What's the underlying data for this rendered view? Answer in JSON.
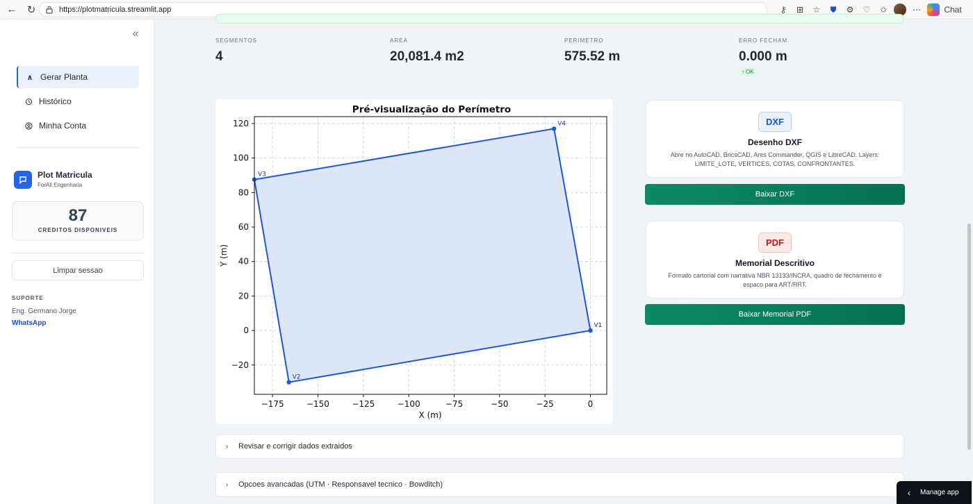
{
  "browser": {
    "url": "https://plotmatricula.streamlit.app",
    "chat_label": "Chat"
  },
  "sidebar": {
    "nav": [
      {
        "label": "Gerar Planta",
        "icon": "caret-up-icon"
      },
      {
        "label": "Histórico",
        "icon": "history-icon"
      },
      {
        "label": "Minha Conta",
        "icon": "account-icon"
      }
    ],
    "brand_name": "Plot Matricula",
    "brand_sub": "ForAll Engenharia",
    "credits": "87",
    "credits_label": "CREDITOS DISPONIVEIS",
    "clear_label": "Limpar sessao",
    "support_title": "SUPORTE",
    "support_name": "Eng. Germano Jorge",
    "support_link": "WhatsApp"
  },
  "metrics": [
    {
      "label": "SEGMENTOS",
      "value": "4"
    },
    {
      "label": "AREA",
      "value": "20,081.4 m2"
    },
    {
      "label": "PERIMETRO",
      "value": "575.52 m"
    },
    {
      "label": "ERRO FECHAM.",
      "value": "0.000 m",
      "delta": "OK"
    }
  ],
  "chart_data": {
    "type": "line",
    "title": "Pré-visualização do Perímetro",
    "xlabel": "X (m)",
    "ylabel": "Y (m)",
    "xlim": [
      -185,
      9
    ],
    "ylim": [
      -37,
      124
    ],
    "xticks": [
      -175,
      -150,
      -125,
      -100,
      -75,
      -50,
      -25,
      0
    ],
    "yticks": [
      -20,
      0,
      20,
      40,
      60,
      80,
      100,
      120
    ],
    "grid": true,
    "points": [
      {
        "name": "V1",
        "x": 0,
        "y": 0
      },
      {
        "name": "V2",
        "x": -166,
        "y": -30
      },
      {
        "name": "V3",
        "x": -185,
        "y": 87.5
      },
      {
        "name": "V4",
        "x": -20,
        "y": 117
      }
    ],
    "colors": {
      "line": "#1f56d6",
      "fill": "#dce6f7"
    }
  },
  "cards": {
    "dxf": {
      "badge": "DXF",
      "title": "Desenho DXF",
      "desc": "Abre no AutoCAD, BricsCAD, Ares Commander, QGIS e LibreCAD. Layers: LIMITE_LOTE, VERTICES, COTAS, CONFRONTANTES.",
      "button": "Baixar DXF"
    },
    "pdf": {
      "badge": "PDF",
      "title": "Memorial Descritivo",
      "desc": "Formato cartorial com narrativa NBR 13133/INCRA, quadro de fechamento e espaco para ART/RRT.",
      "button": "Baixar Memorial PDF"
    }
  },
  "expanders": [
    "Revisar e corrigir dados extraidos",
    "Opcoes avancadas (UTM · Responsavel tecnico · Bowditch)"
  ],
  "manage_app": "Manage app"
}
